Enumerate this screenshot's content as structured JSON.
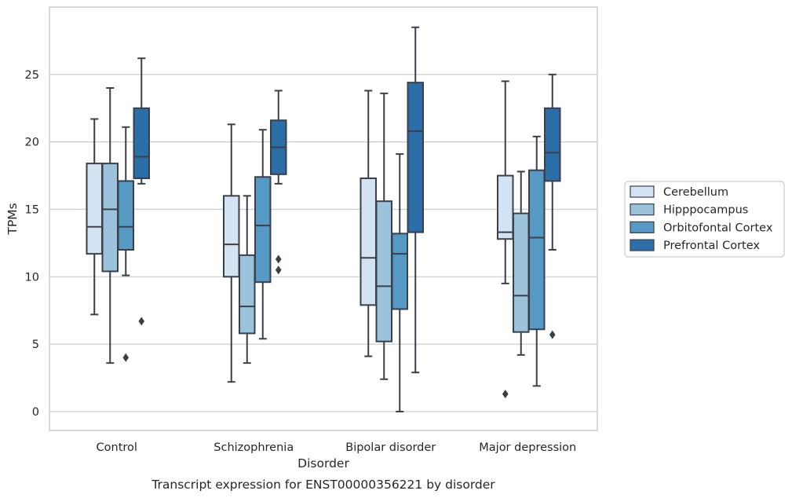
{
  "chart_data": {
    "type": "box",
    "caption": "Transcript expression for ENST00000356221 by disorder",
    "xlabel": "Disorder",
    "ylabel": "TPMs",
    "ylim": [
      -1.4,
      30.0
    ],
    "yticks": [
      0,
      5,
      10,
      15,
      20,
      25
    ],
    "grid": "horizontal",
    "legend_position": "right",
    "categories": [
      "Control",
      "Schizophrenia",
      "Bipolar disorder",
      "Major depression"
    ],
    "series": [
      {
        "name": "Cerebellum",
        "color": "#d4e3f3",
        "boxes": [
          {
            "whislo": 7.2,
            "q1": 11.7,
            "med": 13.7,
            "q3": 18.4,
            "whishi": 21.7,
            "fliers": []
          },
          {
            "whislo": 2.2,
            "q1": 10.0,
            "med": 12.4,
            "q3": 16.0,
            "whishi": 21.3,
            "fliers": []
          },
          {
            "whislo": 4.1,
            "q1": 7.9,
            "med": 11.4,
            "q3": 17.3,
            "whishi": 23.8,
            "fliers": []
          },
          {
            "whislo": 9.5,
            "q1": 12.8,
            "med": 13.3,
            "q3": 17.5,
            "whishi": 24.5,
            "fliers": [
              1.3
            ]
          }
        ]
      },
      {
        "name": "Hipppocampus",
        "color": "#9bc3db",
        "boxes": [
          {
            "whislo": 3.6,
            "q1": 10.4,
            "med": 15.0,
            "q3": 18.4,
            "whishi": 24.0,
            "fliers": []
          },
          {
            "whislo": 3.6,
            "q1": 5.8,
            "med": 7.8,
            "q3": 11.6,
            "whishi": 16.0,
            "fliers": []
          },
          {
            "whislo": 2.4,
            "q1": 5.2,
            "med": 9.3,
            "q3": 15.6,
            "whishi": 23.6,
            "fliers": []
          },
          {
            "whislo": 4.2,
            "q1": 5.9,
            "med": 8.6,
            "q3": 14.7,
            "whishi": 17.8,
            "fliers": []
          }
        ]
      },
      {
        "name": "Orbitofontal Cortex",
        "color": "#5599c4",
        "boxes": [
          {
            "whislo": 10.1,
            "q1": 12.0,
            "med": 13.7,
            "q3": 17.1,
            "whishi": 21.1,
            "fliers": [
              4.0
            ]
          },
          {
            "whislo": 5.4,
            "q1": 9.6,
            "med": 13.8,
            "q3": 17.4,
            "whishi": 20.9,
            "fliers": []
          },
          {
            "whislo": 0.0,
            "q1": 7.6,
            "med": 11.7,
            "q3": 13.2,
            "whishi": 19.1,
            "fliers": []
          },
          {
            "whislo": 1.9,
            "q1": 6.1,
            "med": 12.9,
            "q3": 17.9,
            "whishi": 20.4,
            "fliers": []
          }
        ]
      },
      {
        "name": "Prefrontal Cortex",
        "color": "#2c6ea8",
        "boxes": [
          {
            "whislo": 16.9,
            "q1": 17.3,
            "med": 18.9,
            "q3": 22.5,
            "whishi": 26.2,
            "fliers": [
              6.7
            ]
          },
          {
            "whislo": 16.9,
            "q1": 17.6,
            "med": 19.6,
            "q3": 21.6,
            "whishi": 23.8,
            "fliers": [
              11.3,
              10.5
            ]
          },
          {
            "whislo": 2.9,
            "q1": 13.3,
            "med": 20.8,
            "q3": 24.4,
            "whishi": 28.5,
            "fliers": []
          },
          {
            "whislo": 12.0,
            "q1": 17.1,
            "med": 19.2,
            "q3": 22.5,
            "whishi": 25.0,
            "fliers": [
              5.7
            ]
          }
        ]
      }
    ]
  }
}
